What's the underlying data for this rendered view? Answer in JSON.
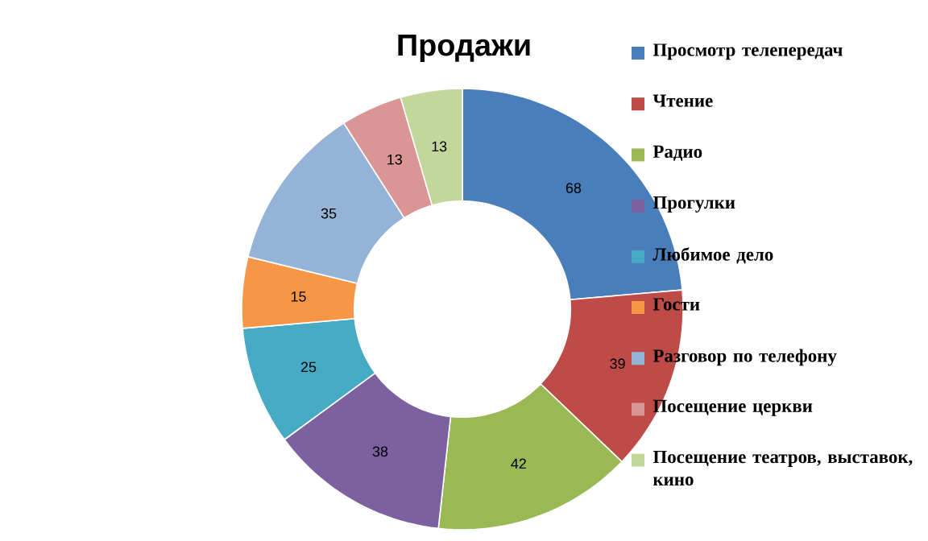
{
  "chart_data": {
    "type": "donut",
    "title": "Продажи",
    "categories": [
      "Просмотр телепередач",
      "Чтение",
      "Радио",
      "Прогулки",
      "Любимое дело",
      "Гости",
      "Разговор по телефону",
      "Посещение церкви",
      "Посещение театров, выставок, кино"
    ],
    "values": [
      68,
      39,
      42,
      38,
      25,
      15,
      35,
      13,
      13
    ],
    "colors": [
      "#4a7ebb",
      "#be4b48",
      "#98b954",
      "#7d60a0",
      "#46aac5",
      "#f79646",
      "#94b3d6",
      "#d99694",
      "#c3d69b"
    ],
    "data_labels": true,
    "legend": "right"
  }
}
